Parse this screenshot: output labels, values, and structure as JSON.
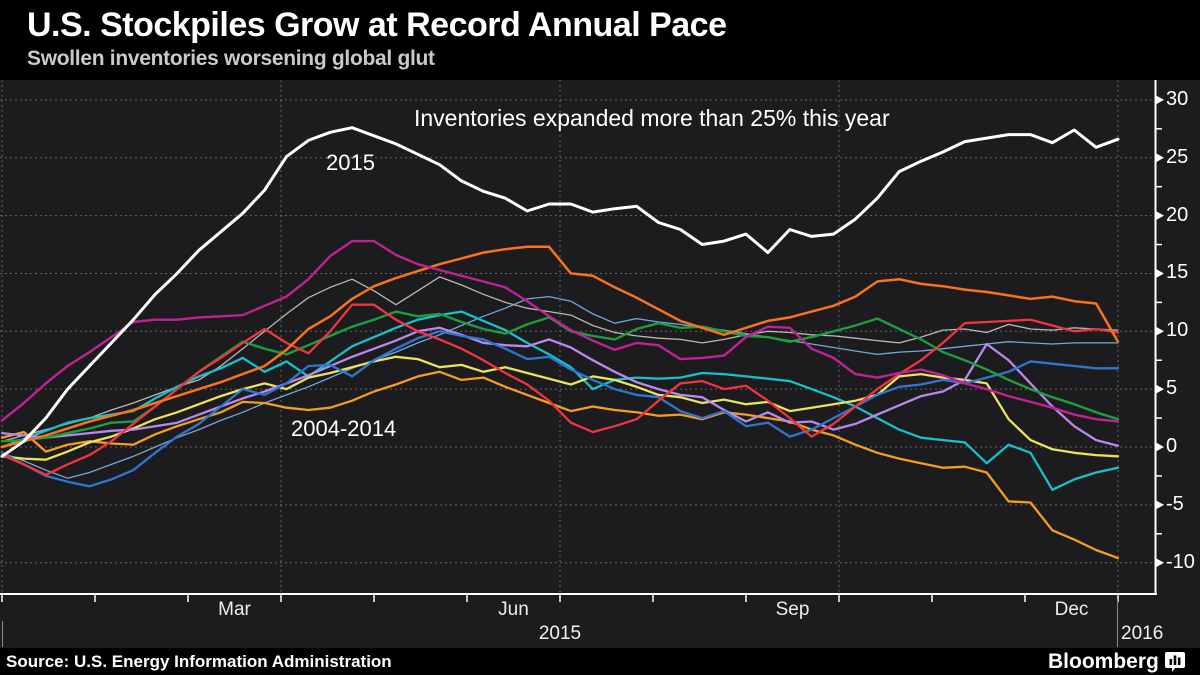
{
  "header": {
    "title": "U.S. Stockpiles Grow at Record Annual Pace",
    "subtitle": "Swollen inventories worsening global glut"
  },
  "footer": {
    "source": "Source: U.S. Energy Information Administration",
    "brand": "Bloomberg"
  },
  "chart_data": {
    "type": "line",
    "title": "U.S. Stockpiles Grow at Record Annual Pace",
    "subtitle": "Swollen inventories worsening global glut",
    "x_unit": "weeks of 2015 (Jan–Dec, weekly data)",
    "y_unit": "% change in inventories, year to date",
    "grid": "dashed",
    "legend_position": "inline-annotations",
    "annotations": {
      "callout": "Inventories expanded more than 25% this year",
      "highlight_label": "2015",
      "range_label": "2004-2014"
    },
    "x_axis": {
      "month_labels": [
        "Mar",
        "Jun",
        "Sep",
        "Dec"
      ],
      "month_positions": [
        2.5,
        5.5,
        8.5,
        11.5
      ],
      "grid_months": [
        0,
        3,
        6,
        9,
        12
      ],
      "year_label": "2015",
      "next_year_label": "2016"
    },
    "y_axis": {
      "ticks": [
        30,
        25,
        20,
        15,
        10,
        5,
        0,
        -5,
        -10
      ],
      "range": [
        -12.5,
        31.5
      ]
    },
    "colors": {
      "background": "#1c1c1e",
      "frame_black": "#000000",
      "grid": "#7e7e7e",
      "highlight": "#ffffff"
    },
    "series": [
      {
        "name": "2004-2014 gray",
        "color": "#b9b9b9",
        "width": 1.3,
        "values": [
          0.5,
          1.0,
          1.5,
          2.0,
          2.5,
          3.2,
          3.8,
          4.5,
          5.2,
          5.8,
          7.0,
          8.5,
          10.0,
          11.5,
          12.9,
          13.8,
          14.5,
          13.5,
          12.3,
          13.5,
          14.7,
          14.0,
          13.2,
          12.5,
          12.0,
          11.7,
          11.4,
          10.5,
          9.9,
          9.6,
          9.4,
          9.3,
          9.0,
          9.3,
          9.7,
          10.0,
          9.9,
          9.7,
          9.6,
          9.4,
          9.2,
          9.0,
          9.5,
          10.1,
          10.2,
          9.9,
          10.6,
          10.2,
          10.1,
          10.3,
          10.2,
          10.1
        ]
      },
      {
        "name": "2004-2014 light blue",
        "color": "#74a7dc",
        "width": 1.3,
        "values": [
          -0.5,
          -1.2,
          -2.0,
          -2.7,
          -2.2,
          -1.5,
          -0.8,
          0.0,
          0.8,
          1.5,
          2.3,
          3.0,
          3.8,
          4.5,
          5.2,
          6.0,
          6.8,
          7.5,
          8.2,
          9.0,
          9.7,
          10.5,
          11.3,
          12.0,
          12.8,
          13.0,
          12.6,
          11.5,
          10.7,
          11.1,
          10.8,
          10.6,
          10.3,
          10.1,
          9.8,
          9.5,
          9.2,
          8.9,
          8.6,
          8.3,
          8.0,
          8.2,
          8.3,
          8.5,
          8.7,
          8.9,
          9.1,
          9.0,
          8.9,
          9.0,
          9.0,
          9.0
        ]
      },
      {
        "name": "2004-2014 amber",
        "color": "#f49d20",
        "width": 2.3,
        "values": [
          0.8,
          1.3,
          -0.4,
          0.2,
          0.5,
          0.3,
          0.2,
          1.1,
          1.8,
          2.4,
          3.0,
          3.9,
          3.8,
          3.4,
          3.2,
          3.4,
          4.0,
          4.8,
          5.4,
          6.1,
          6.5,
          5.8,
          6.0,
          5.2,
          4.5,
          3.8,
          3.1,
          3.5,
          3.2,
          3.0,
          2.7,
          2.8,
          2.4,
          3.0,
          2.8,
          2.5,
          2.2,
          1.5,
          1.0,
          0.2,
          -0.5,
          -1.0,
          -1.4,
          -1.8,
          -1.7,
          -2.2,
          -4.7,
          -4.8,
          -7.2,
          -8.0,
          -8.9,
          -9.6
        ]
      },
      {
        "name": "2004-2014 teal",
        "color": "#16c2c9",
        "width": 2.3,
        "values": [
          0.0,
          0.7,
          1.4,
          2.1,
          2.5,
          2.8,
          3.1,
          4.2,
          5.2,
          6.1,
          6.8,
          7.7,
          6.5,
          7.4,
          6.1,
          7.4,
          8.7,
          9.5,
          10.3,
          11.0,
          11.4,
          11.7,
          10.9,
          10.1,
          9.0,
          8.0,
          6.9,
          5.0,
          5.8,
          6.0,
          5.9,
          6.0,
          6.4,
          6.3,
          6.1,
          5.9,
          5.7,
          5.0,
          4.3,
          3.5,
          2.5,
          1.5,
          0.8,
          0.6,
          0.4,
          -1.4,
          0.2,
          -0.5,
          -3.7,
          -2.8,
          -2.2,
          -1.8
        ]
      },
      {
        "name": "2004-2014 yellow",
        "color": "#ebe25e",
        "width": 2.3,
        "values": [
          -0.8,
          -1.0,
          -1.1,
          -0.4,
          0.4,
          0.9,
          1.6,
          2.4,
          3.0,
          3.7,
          4.4,
          5.0,
          5.5,
          5.0,
          6.0,
          6.4,
          6.9,
          7.4,
          7.8,
          7.6,
          6.9,
          7.1,
          6.5,
          6.9,
          6.4,
          5.9,
          5.4,
          6.1,
          5.8,
          5.2,
          4.5,
          4.3,
          3.8,
          4.1,
          3.7,
          3.9,
          3.1,
          3.4,
          3.7,
          4.0,
          4.5,
          6.1,
          6.3,
          6.0,
          5.8,
          5.5,
          2.4,
          0.6,
          -0.2,
          -0.5,
          -0.7,
          -0.8
        ]
      },
      {
        "name": "2004-2014 purple",
        "color": "#b988ec",
        "width": 2.3,
        "values": [
          1.2,
          1.0,
          0.8,
          1.0,
          1.2,
          1.4,
          1.5,
          1.8,
          2.1,
          2.8,
          3.5,
          4.2,
          4.8,
          5.5,
          6.2,
          7.0,
          7.8,
          8.5,
          9.2,
          10.0,
          10.3,
          9.7,
          9.0,
          8.8,
          8.7,
          9.3,
          8.6,
          7.5,
          6.5,
          5.6,
          5.0,
          4.5,
          4.3,
          3.2,
          2.2,
          3.0,
          2.1,
          2.2,
          1.5,
          2.0,
          2.8,
          3.6,
          4.4,
          4.8,
          5.8,
          8.9,
          7.5,
          5.5,
          3.5,
          1.8,
          0.6,
          0.1
        ]
      },
      {
        "name": "2004-2014 blue",
        "color": "#2e77d0",
        "width": 2.3,
        "values": [
          -0.5,
          -1.5,
          -2.5,
          -3.0,
          -3.4,
          -2.8,
          -2.0,
          -0.5,
          0.9,
          2.0,
          3.5,
          5.0,
          4.5,
          5.5,
          7.0,
          7.1,
          6.1,
          7.5,
          8.5,
          9.4,
          10.0,
          9.6,
          9.3,
          8.5,
          7.6,
          7.8,
          6.7,
          5.8,
          5.0,
          4.5,
          4.3,
          3.1,
          2.5,
          3.1,
          1.8,
          2.1,
          0.9,
          1.5,
          2.5,
          3.5,
          4.5,
          5.2,
          5.4,
          5.8,
          5.5,
          6.0,
          6.5,
          7.4,
          7.2,
          7.0,
          6.8,
          6.8
        ]
      },
      {
        "name": "2004-2014 green",
        "color": "#1d9c40",
        "width": 2.4,
        "values": [
          0.5,
          0.6,
          0.8,
          1.2,
          1.6,
          2.1,
          2.2,
          3.5,
          5.0,
          6.5,
          7.8,
          9.1,
          8.5,
          8.0,
          8.8,
          9.6,
          10.4,
          11.0,
          11.7,
          11.3,
          11.5,
          10.8,
          10.2,
          9.8,
          10.6,
          11.2,
          10.0,
          9.6,
          9.3,
          10.2,
          10.7,
          10.3,
          10.4,
          10.0,
          9.6,
          9.5,
          9.1,
          9.5,
          10.0,
          10.5,
          11.1,
          10.2,
          9.3,
          8.2,
          7.5,
          6.7,
          5.8,
          5.0,
          4.3,
          3.7,
          3.0,
          2.4
        ]
      },
      {
        "name": "2004-2014 red",
        "color": "#f03540",
        "width": 2.3,
        "values": [
          -0.7,
          -1.5,
          -2.4,
          -1.5,
          -0.7,
          0.5,
          2.0,
          3.5,
          5.0,
          6.5,
          7.7,
          9.0,
          10.2,
          9.0,
          8.1,
          10.0,
          12.3,
          12.3,
          11.0,
          10.0,
          9.3,
          8.5,
          7.5,
          6.4,
          5.4,
          4.0,
          2.1,
          1.3,
          1.8,
          2.4,
          4.0,
          5.5,
          5.7,
          5.0,
          5.3,
          4.0,
          2.5,
          0.9,
          2.0,
          3.5,
          5.0,
          6.3,
          7.5,
          9.0,
          10.7,
          10.8,
          10.9,
          11.0,
          10.5,
          10.0,
          10.2,
          9.9
        ]
      },
      {
        "name": "2004-2014 orange",
        "color": "#f8731d",
        "width": 2.5,
        "values": [
          0.0,
          0.5,
          1.0,
          1.6,
          2.2,
          2.7,
          3.2,
          3.8,
          4.4,
          5.0,
          5.6,
          6.3,
          7.0,
          8.4,
          10.2,
          11.3,
          12.8,
          13.9,
          14.6,
          15.2,
          15.8,
          16.3,
          16.8,
          17.1,
          17.3,
          17.3,
          15.0,
          14.8,
          13.8,
          12.9,
          11.9,
          10.9,
          10.3,
          9.7,
          10.3,
          10.9,
          11.2,
          11.7,
          12.2,
          13.0,
          14.3,
          14.5,
          14.1,
          13.9,
          13.6,
          13.4,
          13.1,
          12.8,
          13.0,
          12.6,
          12.4,
          9.1
        ]
      },
      {
        "name": "2004-2014 magenta",
        "color": "#bf2296",
        "width": 2.4,
        "values": [
          2.3,
          3.8,
          5.5,
          7.0,
          8.2,
          9.5,
          10.8,
          11.0,
          11.0,
          11.2,
          11.3,
          11.4,
          12.2,
          13.0,
          14.5,
          16.5,
          17.8,
          17.8,
          16.6,
          15.8,
          15.3,
          14.8,
          14.3,
          13.8,
          12.6,
          11.3,
          10.1,
          9.2,
          8.4,
          9.0,
          8.8,
          7.6,
          7.7,
          7.9,
          9.5,
          10.4,
          10.3,
          8.5,
          7.7,
          6.3,
          6.0,
          6.4,
          6.7,
          6.2,
          5.5,
          5.0,
          4.4,
          3.9,
          3.4,
          2.8,
          2.4,
          2.2
        ]
      },
      {
        "name": "2015",
        "color": "#ffffff",
        "width": 3,
        "values": [
          -0.8,
          0.5,
          2.5,
          5.0,
          7.0,
          9.0,
          11.0,
          13.2,
          15.0,
          17.0,
          18.6,
          20.2,
          22.2,
          25.1,
          26.5,
          27.2,
          27.6,
          26.9,
          26.2,
          25.3,
          24.4,
          23.0,
          22.1,
          21.5,
          20.4,
          21.0,
          21.0,
          20.3,
          20.6,
          20.8,
          19.4,
          18.8,
          17.5,
          17.8,
          18.4,
          16.8,
          18.8,
          18.2,
          18.4,
          19.7,
          21.5,
          23.8,
          24.7,
          25.5,
          26.4,
          26.7,
          27.0,
          27.0,
          26.3,
          27.4,
          25.9,
          26.6
        ]
      }
    ]
  }
}
